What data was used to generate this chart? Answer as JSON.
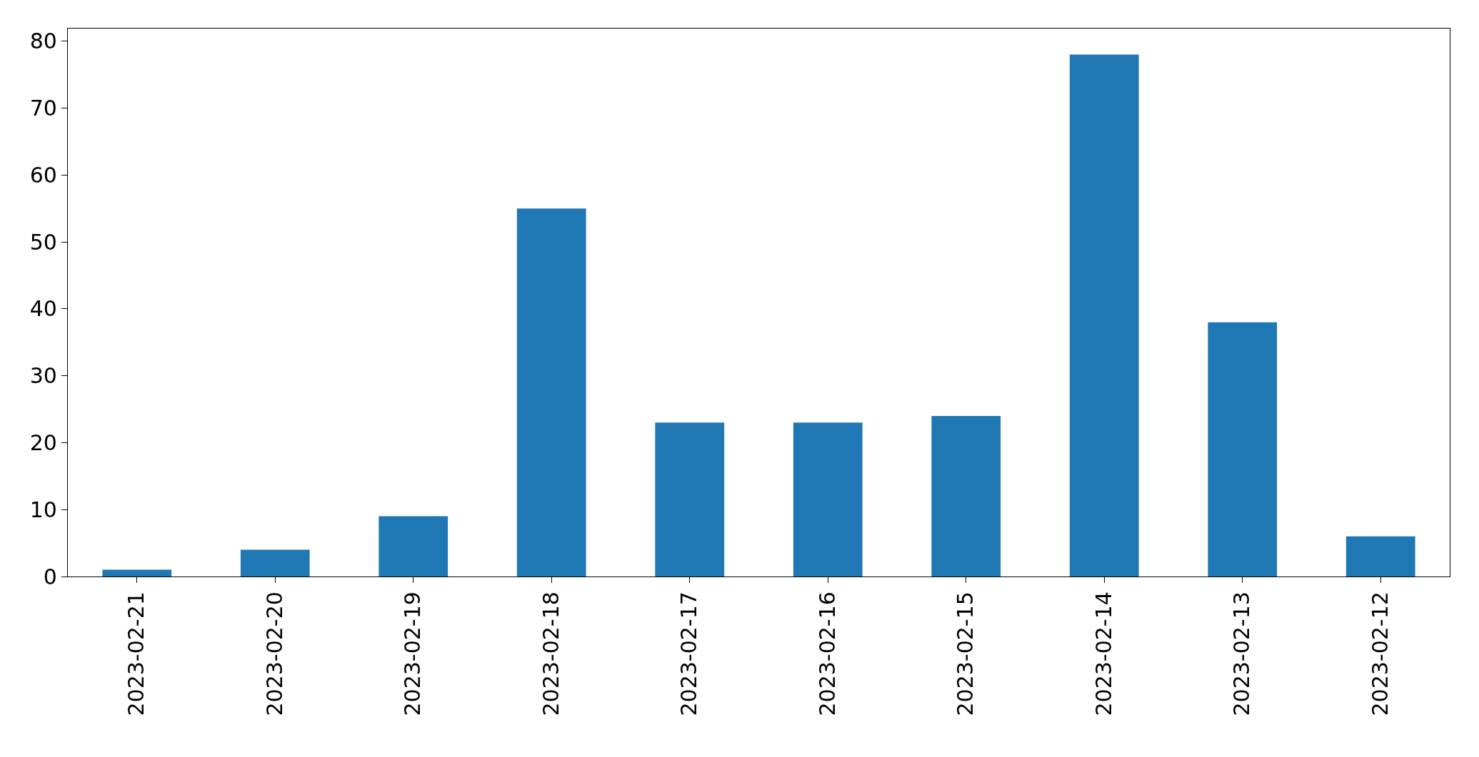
{
  "chart_data": {
    "type": "bar",
    "categories": [
      "2023-02-21",
      "2023-02-20",
      "2023-02-19",
      "2023-02-18",
      "2023-02-17",
      "2023-02-16",
      "2023-02-15",
      "2023-02-14",
      "2023-02-13",
      "2023-02-12"
    ],
    "values": [
      1,
      4,
      9,
      55,
      23,
      23,
      24,
      78,
      38,
      6
    ],
    "color": "#1f77b4",
    "ylim": [
      0,
      81.9
    ],
    "yticks": [
      0,
      10,
      20,
      30,
      40,
      50,
      60,
      70,
      80
    ]
  }
}
